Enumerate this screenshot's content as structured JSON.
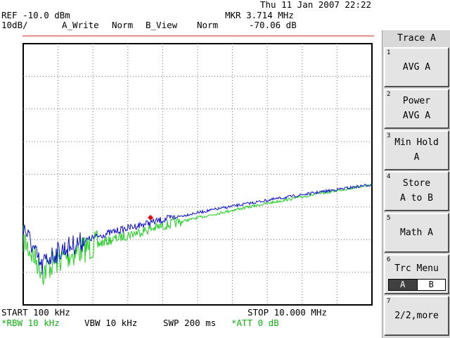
{
  "header": {
    "datetime": "Thu 11 Jan 2007 22:22",
    "ref_level": "REF -10.0 dBm",
    "scale": "10dB/",
    "trace_a_mode": "A_Write",
    "trace_a_detector": "Norm",
    "trace_b_mode": "B_View",
    "trace_b_detector": "Norm",
    "marker_freq": "MKR 3.714 MHz",
    "marker_level": "-70.06 dB"
  },
  "footer": {
    "start": "START 100 kHz",
    "stop": "STOP 10.000 MHz",
    "rbw": "*RBW 10 kHz",
    "vbw": "VBW 10 kHz",
    "sweep": "SWP 200 ms",
    "attenuation": "*ATT 0 dB"
  },
  "softkeys": {
    "title": "Trace A",
    "keys": [
      {
        "num": "1",
        "line1": "AVG A",
        "line2": ""
      },
      {
        "num": "2",
        "line1": "Power",
        "line2": "AVG A"
      },
      {
        "num": "3",
        "line1": "Min Hold",
        "line2": "A"
      },
      {
        "num": "4",
        "line1": "Store",
        "line2": "A to B"
      },
      {
        "num": "5",
        "line1": "Math A",
        "line2": ""
      },
      {
        "num": "6",
        "line1": "Trc Menu",
        "opt_a": "A",
        "opt_b": "B"
      },
      {
        "num": "7",
        "line1": "2/2,more",
        "line2": ""
      }
    ]
  },
  "colors": {
    "trace_a": "#1010d0",
    "trace_b": "#20d020",
    "reference_line": "#d02020",
    "marker": "#e01010",
    "footer_green": "#10b010"
  }
}
